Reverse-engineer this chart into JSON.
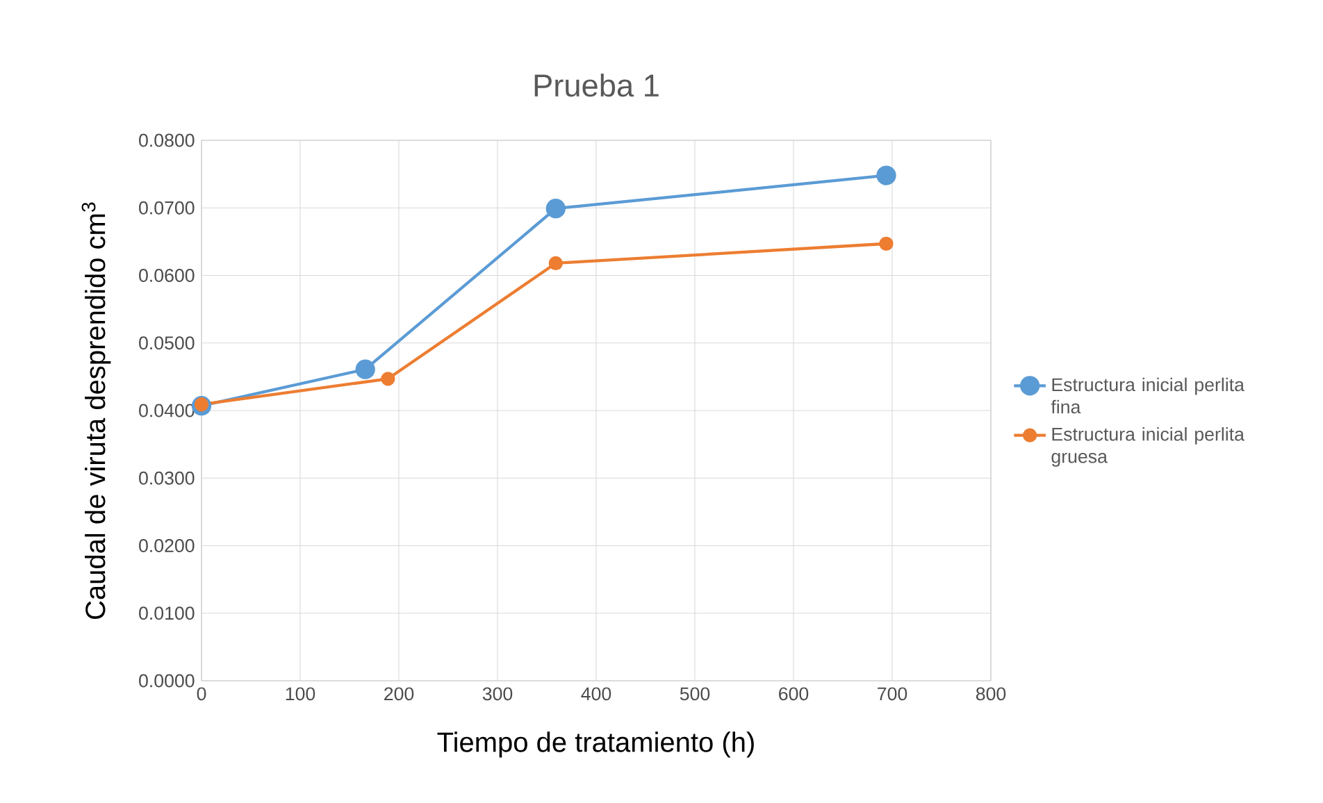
{
  "chart_data": {
    "type": "line",
    "title": "Prueba 1",
    "xlabel": "Tiempo de tratamiento (h)",
    "ylabel": "Caudal de viruta desprendido cm$^{3}$",
    "series": [
      {
        "name": "Estructura inicial perlita fina",
        "color": "#5b9bd5",
        "x": [
          0,
          166,
          359,
          694
        ],
        "values": [
          0.0407,
          0.0461,
          0.0699,
          0.0748
        ]
      },
      {
        "name": "Estructura inicial perlita gruesa",
        "color": "#ed7d31",
        "x": [
          0,
          189,
          359,
          694
        ],
        "values": [
          0.0409,
          0.0447,
          0.0618,
          0.0647
        ]
      }
    ],
    "xlim": [
      0,
      800
    ],
    "xticks": [
      0,
      100,
      200,
      300,
      400,
      500,
      600,
      700,
      800
    ],
    "ylim": [
      0,
      0.08
    ],
    "yticks": [
      {
        "value": 0,
        "label": "0.0000"
      },
      {
        "value": 0.01,
        "label": "0.0100"
      },
      {
        "value": 0.02,
        "label": "0.0200"
      },
      {
        "value": 0.03,
        "label": "0.0300"
      },
      {
        "value": 0.04,
        "label": "0.0400"
      },
      {
        "value": 0.05,
        "label": "0.0500"
      },
      {
        "value": 0.06,
        "label": "0.0600"
      },
      {
        "value": 0.07,
        "label": "0.0700"
      },
      {
        "value": 0.08,
        "label": "0.0800"
      }
    ],
    "grid": true,
    "legend": "right",
    "marker": "circle",
    "line_style": "solid"
  }
}
